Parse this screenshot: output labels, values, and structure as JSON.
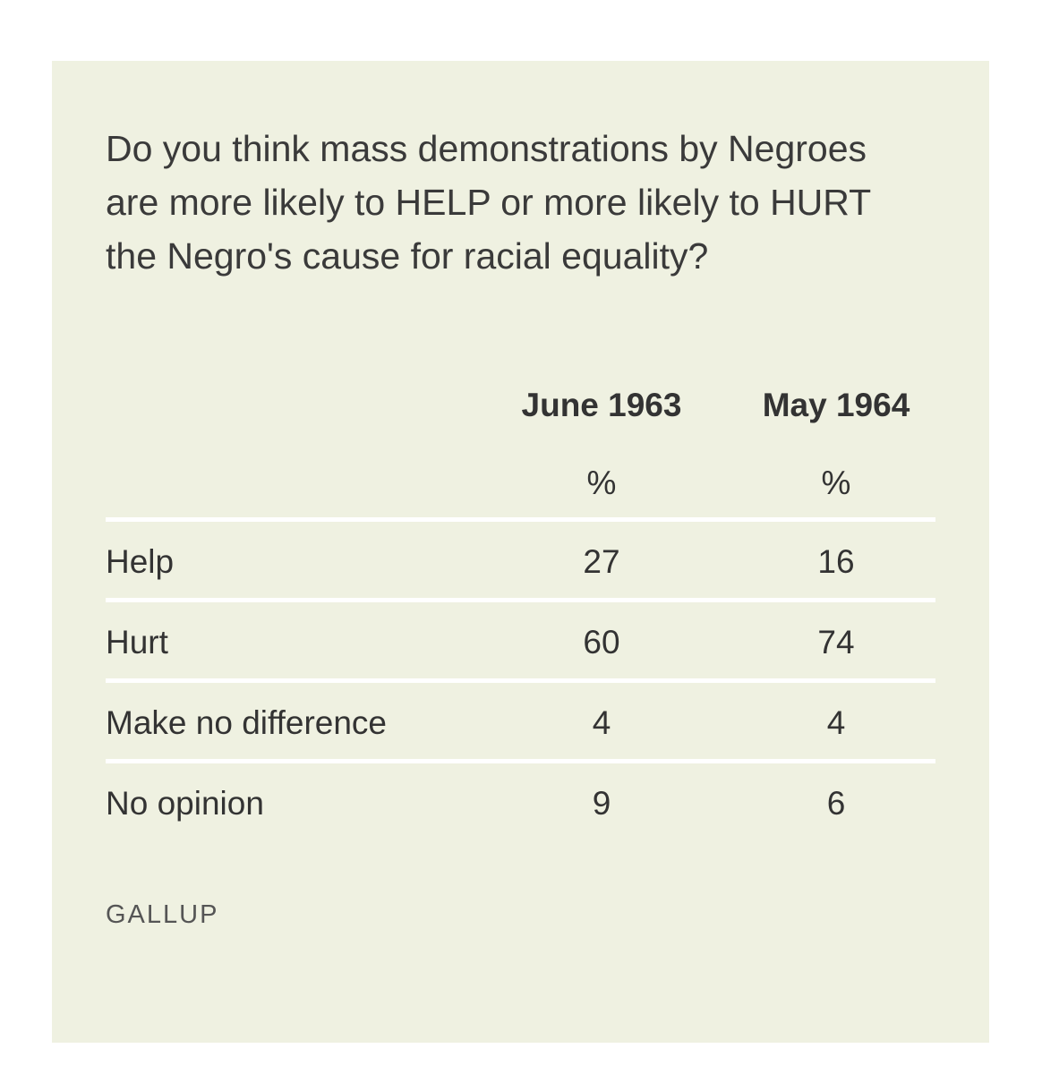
{
  "chart_data": {
    "type": "table",
    "title": "Do you think mass demonstrations by Negroes are more likely to HELP or more likely to HURT the Negro's cause for racial equality?",
    "columns": [
      "June 1963",
      "May 1964"
    ],
    "unit_row": [
      "%",
      "%"
    ],
    "rows": [
      {
        "label": "Help",
        "values": [
          "27",
          "16"
        ]
      },
      {
        "label": "Hurt",
        "values": [
          "60",
          "74"
        ]
      },
      {
        "label": "Make no difference",
        "values": [
          "4",
          "4"
        ]
      },
      {
        "label": "No opinion",
        "values": [
          "9",
          "6"
        ]
      }
    ],
    "source": "GALLUP"
  },
  "colors": {
    "card_background": "#eff1e1",
    "rule": "#ffffff",
    "text": "#333333"
  }
}
